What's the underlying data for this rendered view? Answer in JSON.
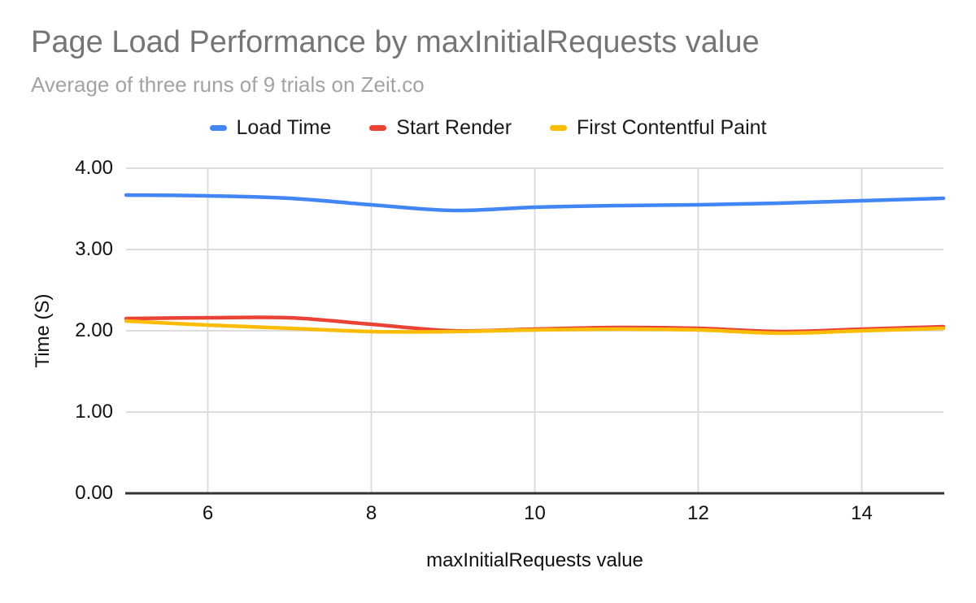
{
  "chart_data": {
    "type": "line",
    "title": "Page Load Performance by maxInitialRequests value",
    "subtitle": "Average of three runs of 9 trials on Zeit.co",
    "xlabel": "maxInitialRequests value",
    "ylabel": "Time (S)",
    "x": [
      5,
      6,
      7,
      8,
      9,
      10,
      11,
      12,
      13,
      14,
      15
    ],
    "series": [
      {
        "name": "Load Time",
        "color": "#4285f4",
        "values": [
          3.67,
          3.66,
          3.63,
          3.55,
          3.48,
          3.52,
          3.54,
          3.55,
          3.57,
          3.6,
          3.63
        ]
      },
      {
        "name": "Start Render",
        "color": "#ea4335",
        "values": [
          2.15,
          2.16,
          2.16,
          2.08,
          2.0,
          2.02,
          2.04,
          2.03,
          1.99,
          2.02,
          2.05
        ]
      },
      {
        "name": "First Contentful Paint",
        "color": "#fbbc04",
        "values": [
          2.12,
          2.07,
          2.03,
          1.99,
          1.99,
          2.01,
          2.02,
          2.01,
          1.97,
          2.0,
          2.03
        ]
      }
    ],
    "xlim": [
      5,
      15
    ],
    "ylim": [
      0,
      4
    ],
    "x_ticks": [
      "6",
      "8",
      "10",
      "12",
      "14"
    ],
    "y_ticks": [
      "0.00",
      "1.00",
      "2.00",
      "3.00",
      "4.00"
    ],
    "grid": true,
    "legend_position": "top",
    "colors": {
      "title": "#757575",
      "subtitle": "#a3a3a3",
      "gridline": "#dcdcdc",
      "axis_line": "#333333",
      "tick_label": "#111111"
    }
  }
}
